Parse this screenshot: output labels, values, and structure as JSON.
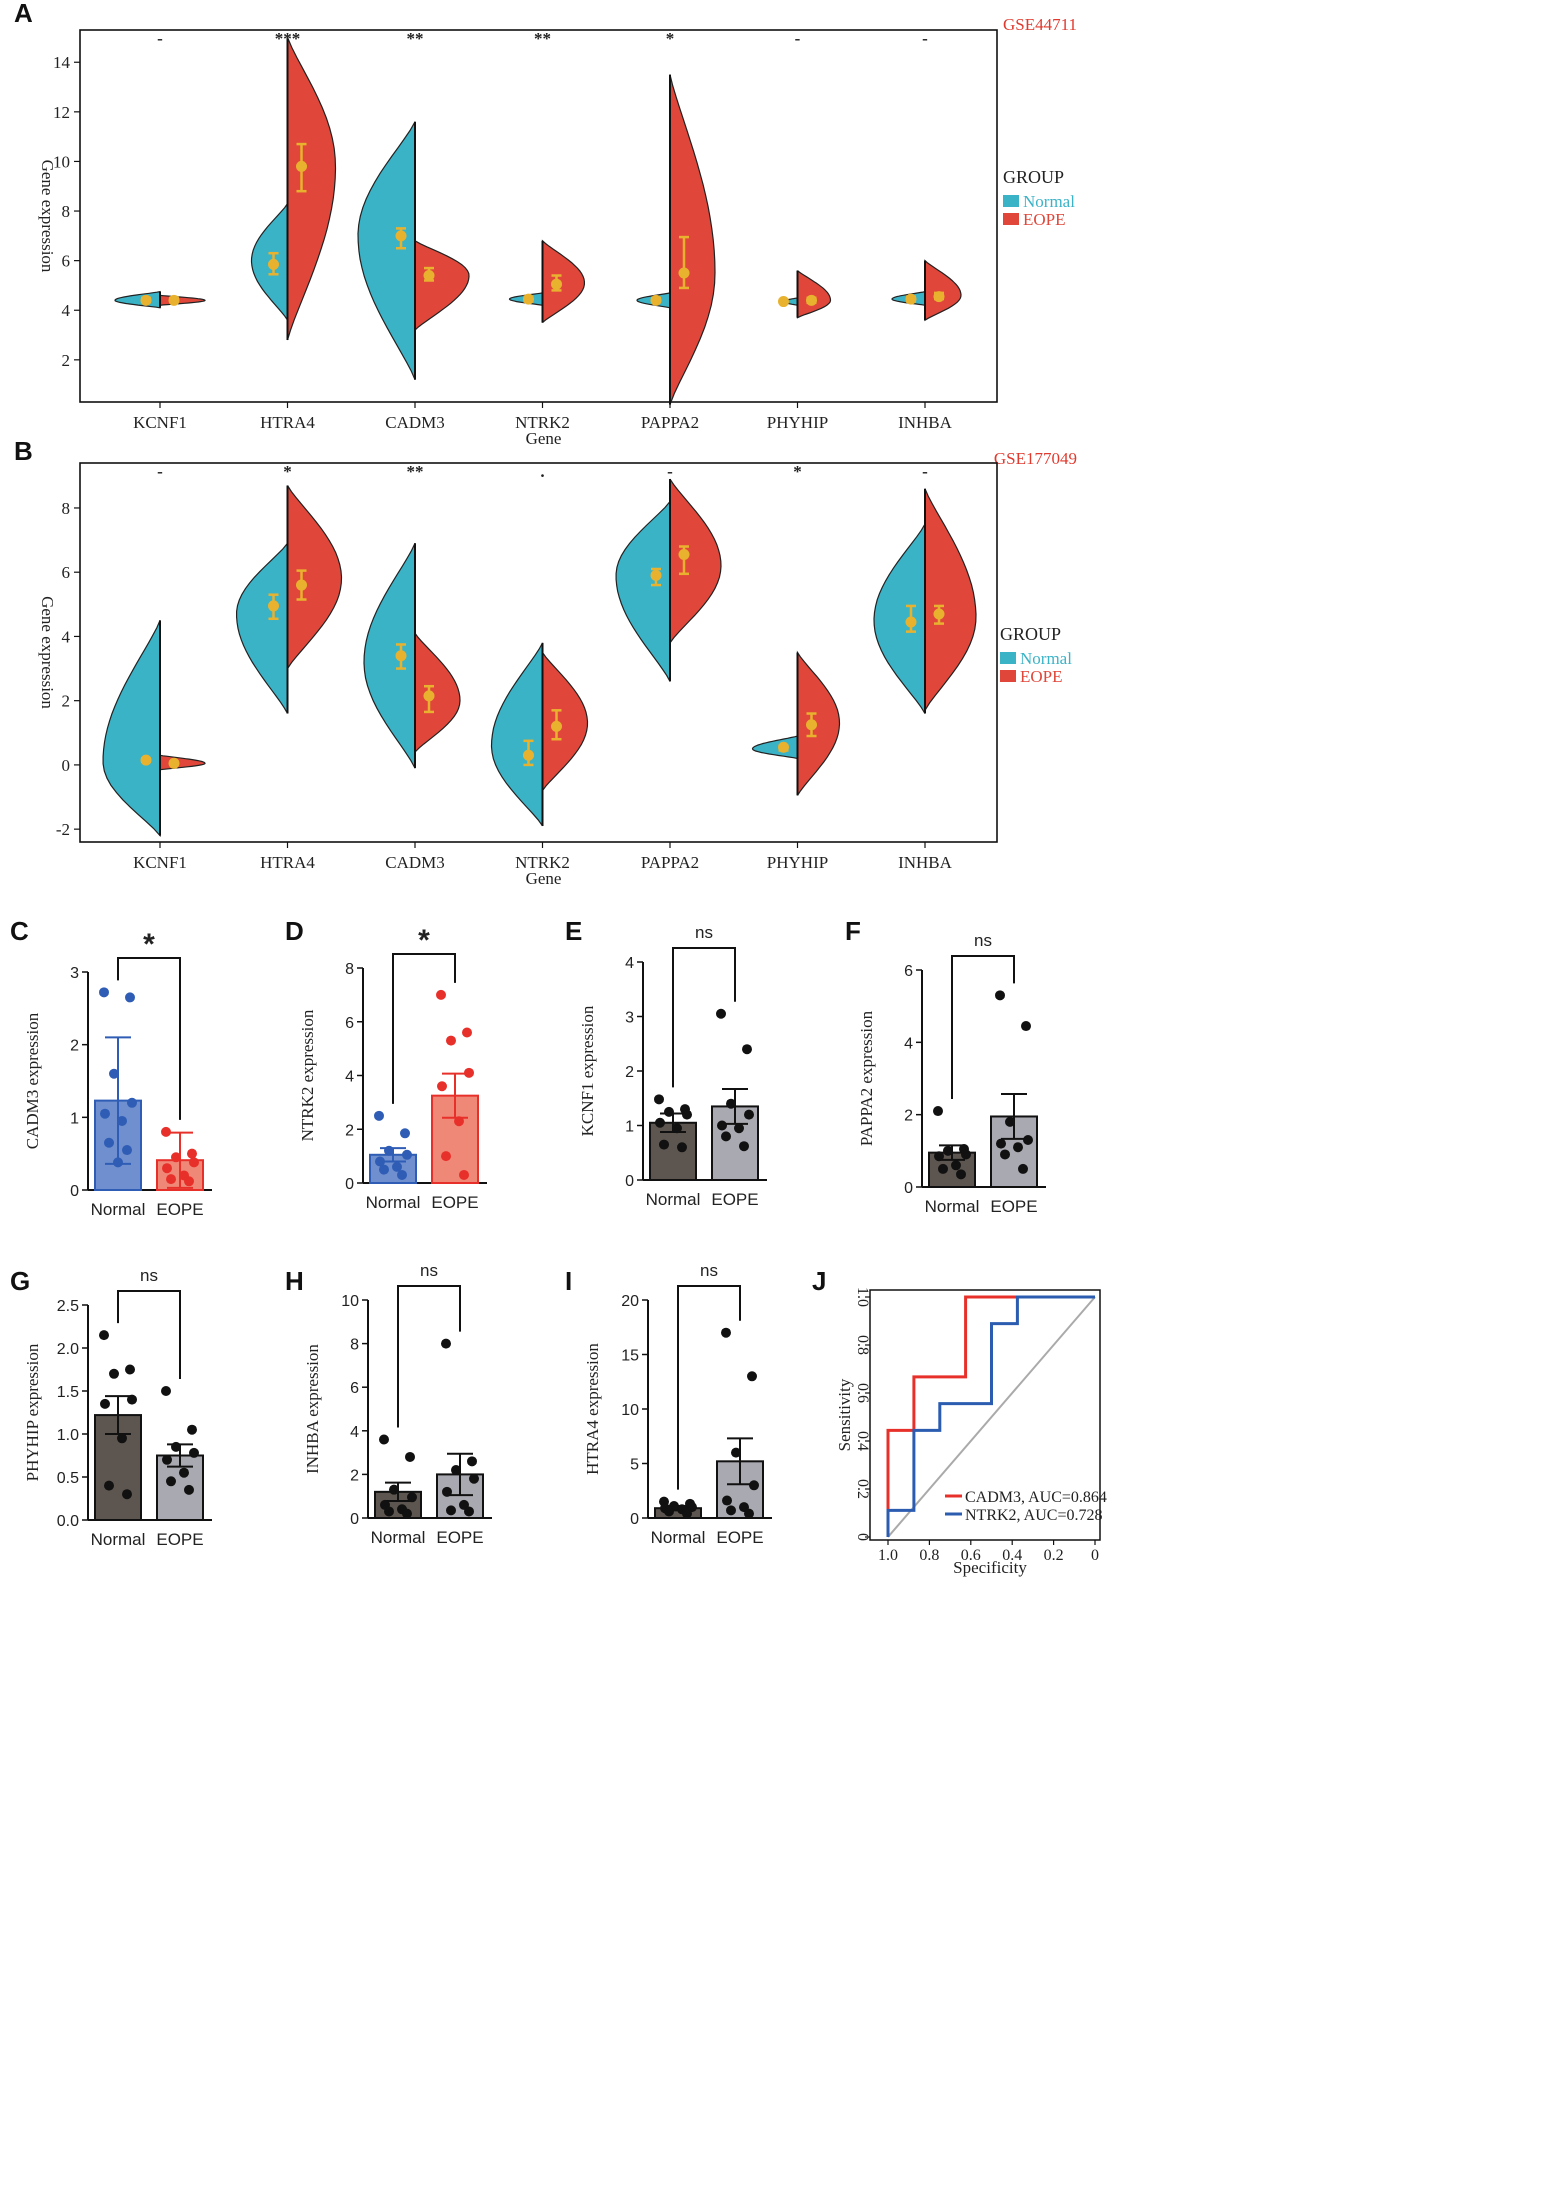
{
  "colors": {
    "normal": "#3bb3c7",
    "eope": "#e0473a",
    "summary": "#e8b22f",
    "dataset": "#e03a2f",
    "blue_bar": "#6f8fcf",
    "blue_dot": "#2f5db5",
    "red_bar": "#f08878",
    "red_dot": "#e8302a",
    "dark_bar": "#5d5650",
    "grey_bar": "#a9a9b1",
    "roc_red": "#e8302a",
    "roc_blue": "#2b5cb0",
    "diag": "#aaaaaa"
  },
  "chart_data": [
    {
      "panel": "A",
      "type": "split-violin",
      "dataset_label": "GSE44711",
      "xlabel": "Gene",
      "ylabel": "Gene expression",
      "ylim": [
        0.3,
        15.3
      ],
      "yticks": [
        2,
        4,
        6,
        8,
        10,
        12,
        14
      ],
      "legend": {
        "title": "GROUP",
        "entries": [
          "Normal",
          "EOPE"
        ]
      },
      "genes": [
        {
          "name": "KCNF1",
          "sig": "-",
          "normal": {
            "min": 4.1,
            "max": 4.75,
            "mode": 4.4,
            "width": 0.75,
            "mean": 4.4,
            "lo": 4.33,
            "hi": 4.5
          },
          "eope": {
            "min": 4.2,
            "max": 4.6,
            "mode": 4.4,
            "width": 0.75,
            "mean": 4.4,
            "lo": 4.33,
            "hi": 4.5
          }
        },
        {
          "name": "HTRA4",
          "sig": "***",
          "normal": {
            "min": 3.6,
            "max": 8.3,
            "mode": 6.0,
            "width": 0.6,
            "mean": 5.85,
            "lo": 5.45,
            "hi": 6.3
          },
          "eope": {
            "min": 2.8,
            "max": 15.0,
            "mode": 9.8,
            "width": 0.8,
            "mean": 9.8,
            "lo": 8.8,
            "hi": 10.7
          }
        },
        {
          "name": "CADM3",
          "sig": "**",
          "normal": {
            "min": 1.2,
            "max": 11.6,
            "mode": 7.0,
            "width": 0.95,
            "mean": 7.0,
            "lo": 6.5,
            "hi": 7.3
          },
          "eope": {
            "min": 3.2,
            "max": 6.8,
            "mode": 5.4,
            "width": 0.9,
            "mean": 5.4,
            "lo": 5.2,
            "hi": 5.7
          }
        },
        {
          "name": "NTRK2",
          "sig": "**",
          "normal": {
            "min": 4.2,
            "max": 4.7,
            "mode": 4.45,
            "width": 0.55,
            "mean": 4.45,
            "lo": 4.35,
            "hi": 4.55
          },
          "eope": {
            "min": 3.5,
            "max": 6.8,
            "mode": 5.1,
            "width": 0.7,
            "mean": 5.05,
            "lo": 4.8,
            "hi": 5.4
          }
        },
        {
          "name": "PAPPA2",
          "sig": "*",
          "normal": {
            "min": 4.1,
            "max": 4.7,
            "mode": 4.4,
            "width": 0.55,
            "mean": 4.4,
            "lo": 4.33,
            "hi": 4.5
          },
          "eope": {
            "min": 0.2,
            "max": 13.5,
            "mode": 5.5,
            "width": 0.75,
            "mean": 5.5,
            "lo": 4.9,
            "hi": 6.95
          }
        },
        {
          "name": "PHYHIP",
          "sig": "-",
          "normal": {
            "min": 4.2,
            "max": 4.5,
            "mode": 4.35,
            "width": 0.25,
            "mean": 4.35,
            "lo": 4.3,
            "hi": 4.42
          },
          "eope": {
            "min": 3.7,
            "max": 5.6,
            "mode": 4.4,
            "width": 0.55,
            "mean": 4.4,
            "lo": 4.3,
            "hi": 4.5
          }
        },
        {
          "name": "INHBA",
          "sig": "-",
          "normal": {
            "min": 4.2,
            "max": 4.75,
            "mode": 4.45,
            "width": 0.55,
            "mean": 4.45,
            "lo": 4.35,
            "hi": 4.55
          },
          "eope": {
            "min": 3.6,
            "max": 6.0,
            "mode": 4.6,
            "width": 0.6,
            "mean": 4.55,
            "lo": 4.45,
            "hi": 4.7
          }
        }
      ]
    },
    {
      "panel": "B",
      "type": "split-violin",
      "dataset_label": "GSE177049",
      "xlabel": "Gene",
      "ylabel": "Gene expression",
      "ylim": [
        -2.4,
        9.4
      ],
      "yticks": [
        -2,
        0,
        2,
        4,
        6,
        8
      ],
      "legend": {
        "title": "GROUP",
        "entries": [
          "Normal",
          "EOPE"
        ]
      },
      "genes": [
        {
          "name": "KCNF1",
          "sig": "-",
          "normal": {
            "min": -2.2,
            "max": 4.5,
            "mode": 0.1,
            "width": 0.95,
            "mean": 0.15,
            "lo": 0.1,
            "hi": 0.2
          },
          "eope": {
            "min": -0.15,
            "max": 0.3,
            "mode": 0.05,
            "width": 0.75,
            "mean": 0.05,
            "lo": 0.0,
            "hi": 0.1
          }
        },
        {
          "name": "HTRA4",
          "sig": "*",
          "normal": {
            "min": 1.6,
            "max": 6.9,
            "mode": 4.7,
            "width": 0.85,
            "mean": 4.95,
            "lo": 4.55,
            "hi": 5.3
          },
          "eope": {
            "min": 3.0,
            "max": 8.7,
            "mode": 5.8,
            "width": 0.9,
            "mean": 5.6,
            "lo": 5.15,
            "hi": 6.05
          }
        },
        {
          "name": "CADM3",
          "sig": "**",
          "normal": {
            "min": -0.1,
            "max": 6.9,
            "mode": 3.2,
            "width": 0.85,
            "mean": 3.4,
            "lo": 3.0,
            "hi": 3.75
          },
          "eope": {
            "min": 0.4,
            "max": 4.1,
            "mode": 2.0,
            "width": 0.75,
            "mean": 2.15,
            "lo": 1.65,
            "hi": 2.45
          }
        },
        {
          "name": "NTRK2",
          "sig": ".",
          "normal": {
            "min": -1.9,
            "max": 3.8,
            "mode": 0.6,
            "width": 0.85,
            "mean": 0.3,
            "lo": 0.0,
            "hi": 0.75
          },
          "eope": {
            "min": -0.8,
            "max": 3.5,
            "mode": 1.3,
            "width": 0.75,
            "mean": 1.2,
            "lo": 0.8,
            "hi": 1.7
          }
        },
        {
          "name": "PAPPA2",
          "sig": "-",
          "normal": {
            "min": 2.6,
            "max": 8.2,
            "mode": 5.9,
            "width": 0.9,
            "mean": 5.9,
            "lo": 5.6,
            "hi": 6.1
          },
          "eope": {
            "min": 3.8,
            "max": 8.9,
            "mode": 6.2,
            "width": 0.85,
            "mean": 6.55,
            "lo": 5.95,
            "hi": 6.8
          }
        },
        {
          "name": "PHYHIP",
          "sig": "*",
          "normal": {
            "min": 0.2,
            "max": 0.9,
            "mode": 0.5,
            "width": 0.75,
            "mean": 0.55,
            "lo": 0.45,
            "hi": 0.6
          },
          "eope": {
            "min": -0.95,
            "max": 3.5,
            "mode": 1.3,
            "width": 0.7,
            "mean": 1.25,
            "lo": 0.9,
            "hi": 1.6
          }
        },
        {
          "name": "INHBA",
          "sig": "-",
          "normal": {
            "min": 1.6,
            "max": 7.5,
            "mode": 4.5,
            "width": 0.85,
            "mean": 4.45,
            "lo": 4.15,
            "hi": 4.95
          },
          "eope": {
            "min": 1.7,
            "max": 8.6,
            "mode": 4.6,
            "width": 0.85,
            "mean": 4.7,
            "lo": 4.4,
            "hi": 4.95
          }
        }
      ]
    },
    {
      "panel": "C",
      "type": "bar",
      "ylabel": "CADM3 expression",
      "ylim": [
        0,
        3
      ],
      "yticks": [
        0,
        1,
        2,
        3
      ],
      "sig": "*",
      "style": "blue-red",
      "categories": [
        "Normal",
        "EOPE"
      ],
      "values": [
        1.23,
        0.41
      ],
      "errors": [
        0.87,
        0.38
      ],
      "points": [
        [
          2.72,
          2.65,
          1.6,
          1.2,
          1.05,
          0.95,
          0.65,
          0.55,
          0.38
        ],
        [
          0.8,
          0.5,
          0.45,
          0.38,
          0.3,
          0.2,
          0.15,
          0.12
        ]
      ]
    },
    {
      "panel": "D",
      "type": "bar",
      "ylabel": "NTRK2 expression",
      "ylim": [
        0,
        8
      ],
      "yticks": [
        0,
        2,
        4,
        6,
        8
      ],
      "sig": "*",
      "style": "blue-red",
      "categories": [
        "Normal",
        "EOPE"
      ],
      "values": [
        1.05,
        3.25
      ],
      "errors": [
        0.25,
        0.82
      ],
      "points": [
        [
          2.5,
          1.85,
          1.2,
          1.05,
          0.8,
          0.6,
          0.5,
          0.3
        ],
        [
          7.0,
          5.6,
          5.3,
          4.1,
          3.6,
          2.3,
          1.0,
          0.3
        ]
      ]
    },
    {
      "panel": "E",
      "type": "bar",
      "ylabel": "KCNF1 expression",
      "ylim": [
        0,
        4
      ],
      "yticks": [
        0,
        1,
        2,
        3,
        4
      ],
      "sig": "ns",
      "style": "dark-grey",
      "categories": [
        "Normal",
        "EOPE"
      ],
      "values": [
        1.05,
        1.35
      ],
      "errors": [
        0.17,
        0.32
      ],
      "points": [
        [
          1.48,
          1.3,
          1.25,
          1.2,
          1.05,
          0.95,
          0.65,
          0.6
        ],
        [
          3.05,
          2.4,
          1.4,
          1.2,
          1.0,
          0.95,
          0.8,
          0.62
        ]
      ]
    },
    {
      "panel": "F",
      "type": "bar",
      "ylabel": "PAPPA2 expression",
      "ylim": [
        0,
        6
      ],
      "yticks": [
        0,
        2,
        4,
        6
      ],
      "sig": "ns",
      "style": "dark-grey",
      "categories": [
        "Normal",
        "EOPE"
      ],
      "values": [
        0.95,
        1.95
      ],
      "errors": [
        0.2,
        0.62
      ],
      "points": [
        [
          2.1,
          1.05,
          1.0,
          0.9,
          0.85,
          0.6,
          0.5,
          0.35
        ],
        [
          5.3,
          4.45,
          1.8,
          1.3,
          1.2,
          1.1,
          0.9,
          0.5
        ]
      ]
    },
    {
      "panel": "G",
      "type": "bar",
      "ylabel": "PHYHIP expression",
      "ylim": [
        0,
        2.5
      ],
      "yticks": [
        0,
        0.5,
        1.0,
        1.5,
        2.0,
        2.5
      ],
      "sig": "ns",
      "style": "dark-grey",
      "categories": [
        "Normal",
        "EOPE"
      ],
      "values": [
        1.22,
        0.75
      ],
      "errors": [
        0.22,
        0.13
      ],
      "points": [
        [
          2.15,
          1.75,
          1.7,
          1.4,
          1.35,
          0.95,
          0.4,
          0.3
        ],
        [
          1.5,
          1.05,
          0.85,
          0.78,
          0.7,
          0.55,
          0.45,
          0.35
        ]
      ]
    },
    {
      "panel": "H",
      "type": "bar",
      "ylabel": "INHBA expression",
      "ylim": [
        0,
        10
      ],
      "yticks": [
        0,
        2,
        4,
        6,
        8,
        10
      ],
      "sig": "ns",
      "style": "dark-grey",
      "categories": [
        "Normal",
        "EOPE"
      ],
      "values": [
        1.2,
        2.0
      ],
      "errors": [
        0.42,
        0.95
      ],
      "points": [
        [
          3.6,
          2.8,
          1.3,
          0.95,
          0.6,
          0.4,
          0.3,
          0.2
        ],
        [
          8.0,
          2.6,
          2.2,
          1.8,
          1.2,
          0.6,
          0.35,
          0.3
        ]
      ]
    },
    {
      "panel": "I",
      "type": "bar",
      "ylabel": "HTRA4 expression",
      "ylim": [
        0,
        20
      ],
      "yticks": [
        0,
        5,
        10,
        15,
        20
      ],
      "sig": "ns",
      "style": "dark-grey",
      "categories": [
        "Normal",
        "EOPE"
      ],
      "values": [
        0.9,
        5.2
      ],
      "errors": [
        0.2,
        2.1
      ],
      "points": [
        [
          1.5,
          1.3,
          1.1,
          1.0,
          0.9,
          0.8,
          0.6,
          0.4
        ],
        [
          17.0,
          13.0,
          6.0,
          3.0,
          1.6,
          1.0,
          0.7,
          0.4
        ]
      ]
    },
    {
      "panel": "J",
      "type": "line",
      "xlabel": "Specificity",
      "ylabel": "Sensitivity",
      "xlim": [
        1.0,
        0.0
      ],
      "ylim": [
        0,
        1.0
      ],
      "xticks": [
        1.0,
        0.8,
        0.6,
        0.4,
        0.2,
        0
      ],
      "yticks": [
        0,
        0.2,
        0.4,
        0.6,
        0.8,
        1.0
      ],
      "series": [
        {
          "name": "CADM3, AUC=0.864",
          "specificity": [
            1.0,
            1.0,
            0.875,
            0.875,
            0.625,
            0.625,
            0.0
          ],
          "sensitivity": [
            0.0,
            0.444,
            0.444,
            0.667,
            0.667,
            1.0,
            1.0
          ]
        },
        {
          "name": "NTRK2, AUC=0.728",
          "specificity": [
            1.0,
            1.0,
            0.875,
            0.875,
            0.75,
            0.75,
            0.5,
            0.5,
            0.375,
            0.375,
            0.0
          ],
          "sensitivity": [
            0.0,
            0.111,
            0.111,
            0.444,
            0.444,
            0.556,
            0.556,
            0.889,
            0.889,
            1.0,
            1.0
          ]
        }
      ]
    }
  ]
}
